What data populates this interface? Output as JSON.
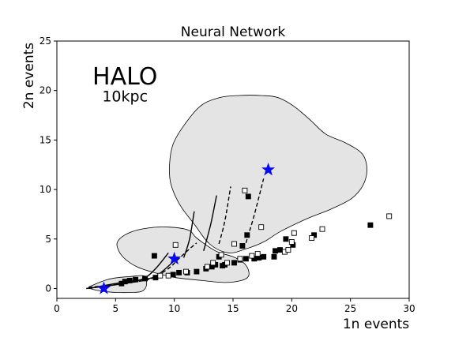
{
  "chart_data": {
    "type": "scatter",
    "title": "Neural Network",
    "xlabel": "1n events",
    "ylabel": "2n events",
    "xlim": [
      0,
      30
    ],
    "ylim": [
      -1,
      25
    ],
    "xticks": [
      0,
      5,
      10,
      15,
      20,
      25,
      30
    ],
    "yticks": [
      0,
      5,
      10,
      15,
      20,
      25
    ],
    "grid": false,
    "annotations": [
      {
        "text": "HALO",
        "x": 5.8,
        "y": 20.6
      },
      {
        "text": "10kpc",
        "x": 5.8,
        "y": 18.9
      }
    ],
    "regions": [
      {
        "fill": "#e4e4e4",
        "outline": [
          [
            11.9,
            5.1
          ],
          [
            11.2,
            5.9
          ],
          [
            9.5,
            6.2
          ],
          [
            7.7,
            6.1
          ],
          [
            6.1,
            5.6
          ],
          [
            5.2,
            4.8
          ],
          [
            5.2,
            4.0
          ],
          [
            5.7,
            3.1
          ],
          [
            6.8,
            2.2
          ],
          [
            8.3,
            1.6
          ],
          [
            10.1,
            1.1
          ],
          [
            12.4,
            0.8
          ],
          [
            14.3,
            0.6
          ],
          [
            15.7,
            0.8
          ],
          [
            16.3,
            1.2
          ],
          [
            16.3,
            1.9
          ],
          [
            15.9,
            2.6
          ],
          [
            15.0,
            3.2
          ],
          [
            13.5,
            3.8
          ]
        ]
      },
      {
        "fill": "#e4e4e4",
        "outline": [
          [
            2.7,
            0.1
          ],
          [
            3.0,
            0.3
          ],
          [
            3.6,
            0.6
          ],
          [
            4.3,
            0.9
          ],
          [
            5.2,
            1.1
          ],
          [
            6.2,
            1.2
          ],
          [
            7.3,
            1.3
          ],
          [
            7.6,
            1.0
          ],
          [
            7.6,
            0.2
          ],
          [
            7.2,
            -0.3
          ],
          [
            6.3,
            -0.4
          ],
          [
            5.1,
            -0.4
          ],
          [
            4.0,
            -0.3
          ],
          [
            3.1,
            -0.1
          ]
        ]
      },
      {
        "fill": "#e4e4e4",
        "outline": [
          [
            9.6,
            12.6
          ],
          [
            9.9,
            14.6
          ],
          [
            10.9,
            16.6
          ],
          [
            12.3,
            18.5
          ],
          [
            13.9,
            19.3
          ],
          [
            15.5,
            19.5
          ],
          [
            17.4,
            19.5
          ],
          [
            18.8,
            19.3
          ],
          [
            20.2,
            18.4
          ],
          [
            21.6,
            17.0
          ],
          [
            22.9,
            15.6
          ],
          [
            24.6,
            14.7
          ],
          [
            26.0,
            13.6
          ],
          [
            26.4,
            12.1
          ],
          [
            26.1,
            10.5
          ],
          [
            25.1,
            9.1
          ],
          [
            23.3,
            8.0
          ],
          [
            21.4,
            7.1
          ],
          [
            19.1,
            5.8
          ],
          [
            17.6,
            4.7
          ],
          [
            16.1,
            4.0
          ],
          [
            14.6,
            3.6
          ],
          [
            13.0,
            4.5
          ],
          [
            11.7,
            6.5
          ],
          [
            10.5,
            8.4
          ],
          [
            9.7,
            10.6
          ]
        ]
      }
    ],
    "curves": [
      {
        "style": "solid",
        "points": [
          [
            2.5,
            0.0
          ],
          [
            4.6,
            0.3
          ],
          [
            6.1,
            0.6
          ],
          [
            7.4,
            1.0
          ],
          [
            8.4,
            2.0
          ],
          [
            9.5,
            3.6
          ]
        ]
      },
      {
        "style": "solid",
        "points": [
          [
            2.7,
            0.0
          ],
          [
            5.0,
            0.5
          ],
          [
            7.3,
            0.9
          ],
          [
            8.5,
            1.3
          ],
          [
            10.0,
            2.8
          ]
        ]
      },
      {
        "style": "solid",
        "points": [
          [
            10.8,
            3.1
          ],
          [
            11.3,
            5.0
          ],
          [
            11.7,
            7.8
          ]
        ]
      },
      {
        "style": "solid",
        "points": [
          [
            12.5,
            3.8
          ],
          [
            13.1,
            6.5
          ],
          [
            13.6,
            9.4
          ]
        ]
      },
      {
        "style": "dashed",
        "points": [
          [
            2.7,
            0.1
          ],
          [
            5.0,
            0.4
          ],
          [
            7.4,
            0.8
          ],
          [
            8.4,
            1.2
          ],
          [
            9.6,
            2.1
          ],
          [
            10.2,
            2.8
          ],
          [
            11.2,
            3.9
          ],
          [
            11.9,
            4.6
          ]
        ]
      },
      {
        "style": "dashed",
        "points": [
          [
            13.8,
            4.5
          ],
          [
            14.3,
            6.8
          ],
          [
            14.8,
            10.3
          ]
        ]
      },
      {
        "style": "dashed",
        "points": [
          [
            16.1,
            4.6
          ],
          [
            16.8,
            7.4
          ],
          [
            17.6,
            11.1
          ]
        ]
      }
    ],
    "series": [
      {
        "marker": "filled-square",
        "color": "#000000",
        "points": [
          [
            5.5,
            0.5
          ],
          [
            5.8,
            0.7
          ],
          [
            6.2,
            0.8
          ],
          [
            6.7,
            0.9
          ],
          [
            7.5,
            1.0
          ],
          [
            8.3,
            3.3
          ],
          [
            8.4,
            1.1
          ],
          [
            9.9,
            1.4
          ],
          [
            10.4,
            1.6
          ],
          [
            11.1,
            1.6
          ],
          [
            11.9,
            1.7
          ],
          [
            12.7,
            2.0
          ],
          [
            13.2,
            2.2
          ],
          [
            13.5,
            2.4
          ],
          [
            13.8,
            3.2
          ],
          [
            14.1,
            2.3
          ],
          [
            14.3,
            2.4
          ],
          [
            15.1,
            2.6
          ],
          [
            15.6,
            2.9
          ],
          [
            15.8,
            4.3
          ],
          [
            16.1,
            3.0
          ],
          [
            16.2,
            5.4
          ],
          [
            16.3,
            9.3
          ],
          [
            16.8,
            3.0
          ],
          [
            17.2,
            3.1
          ],
          [
            17.6,
            3.2
          ],
          [
            18.5,
            3.2
          ],
          [
            18.6,
            3.8
          ],
          [
            19.0,
            3.9
          ],
          [
            19.5,
            5.0
          ],
          [
            20.1,
            4.4
          ],
          [
            21.9,
            5.4
          ],
          [
            26.7,
            6.4
          ]
        ]
      },
      {
        "marker": "open-square",
        "color": "#000000",
        "points": [
          [
            8.8,
            1.3
          ],
          [
            9.5,
            1.3
          ],
          [
            10.1,
            4.4
          ],
          [
            11.0,
            1.7
          ],
          [
            12.8,
            2.2
          ],
          [
            13.3,
            2.6
          ],
          [
            14.0,
            3.4
          ],
          [
            14.5,
            2.6
          ],
          [
            15.1,
            4.5
          ],
          [
            15.6,
            3.0
          ],
          [
            16.0,
            9.9
          ],
          [
            16.6,
            3.3
          ],
          [
            17.1,
            3.5
          ],
          [
            17.4,
            6.2
          ],
          [
            19.4,
            3.7
          ],
          [
            19.7,
            3.9
          ],
          [
            20.0,
            4.7
          ],
          [
            20.2,
            5.6
          ],
          [
            21.7,
            5.1
          ],
          [
            22.6,
            6.0
          ],
          [
            28.3,
            7.3
          ]
        ]
      },
      {
        "marker": "star",
        "color": "#0a0af0",
        "points": [
          [
            4.0,
            0.0
          ],
          [
            10.0,
            3.0
          ],
          [
            18.0,
            12.0
          ]
        ]
      }
    ]
  }
}
